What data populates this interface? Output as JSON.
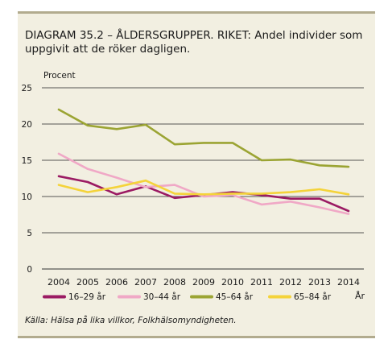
{
  "title": "DIAGRAM 35.2 – ÅLDERSGRUPPER. RIKET: Andel individer som uppgivit att de röker dagligen.",
  "source": "Källa: Hälsa på lika villkor, Folkhälsomyndigheten.",
  "chart_data": {
    "type": "line",
    "ylabel": "Procent",
    "xlabel": "År",
    "ylim": [
      0,
      25
    ],
    "yticks": [
      0,
      5,
      10,
      15,
      20,
      25
    ],
    "grid": true,
    "legend_position": "bottom",
    "x": [
      2004,
      2005,
      2006,
      2007,
      2008,
      2009,
      2010,
      2011,
      2012,
      2013,
      2014
    ],
    "series": [
      {
        "name": "16–29 år",
        "color": "#9b1b63",
        "values": [
          12.8,
          12.0,
          10.3,
          11.4,
          9.8,
          10.2,
          10.6,
          10.2,
          9.7,
          9.7,
          8.0
        ]
      },
      {
        "name": "30–44 år",
        "color": "#f0a8c6",
        "values": [
          15.9,
          13.8,
          12.6,
          11.3,
          11.6,
          10.0,
          10.2,
          8.9,
          9.3,
          8.5,
          7.6
        ]
      },
      {
        "name": "45–64 år",
        "color": "#9ba433",
        "values": [
          22.0,
          19.8,
          19.3,
          19.9,
          17.2,
          17.4,
          17.4,
          15.0,
          15.1,
          14.3,
          14.1
        ]
      },
      {
        "name": "65–84 år",
        "color": "#f4d33a",
        "values": [
          11.6,
          10.6,
          11.3,
          12.2,
          10.4,
          10.3,
          10.4,
          10.4,
          10.6,
          11.0,
          10.3
        ]
      }
    ]
  }
}
